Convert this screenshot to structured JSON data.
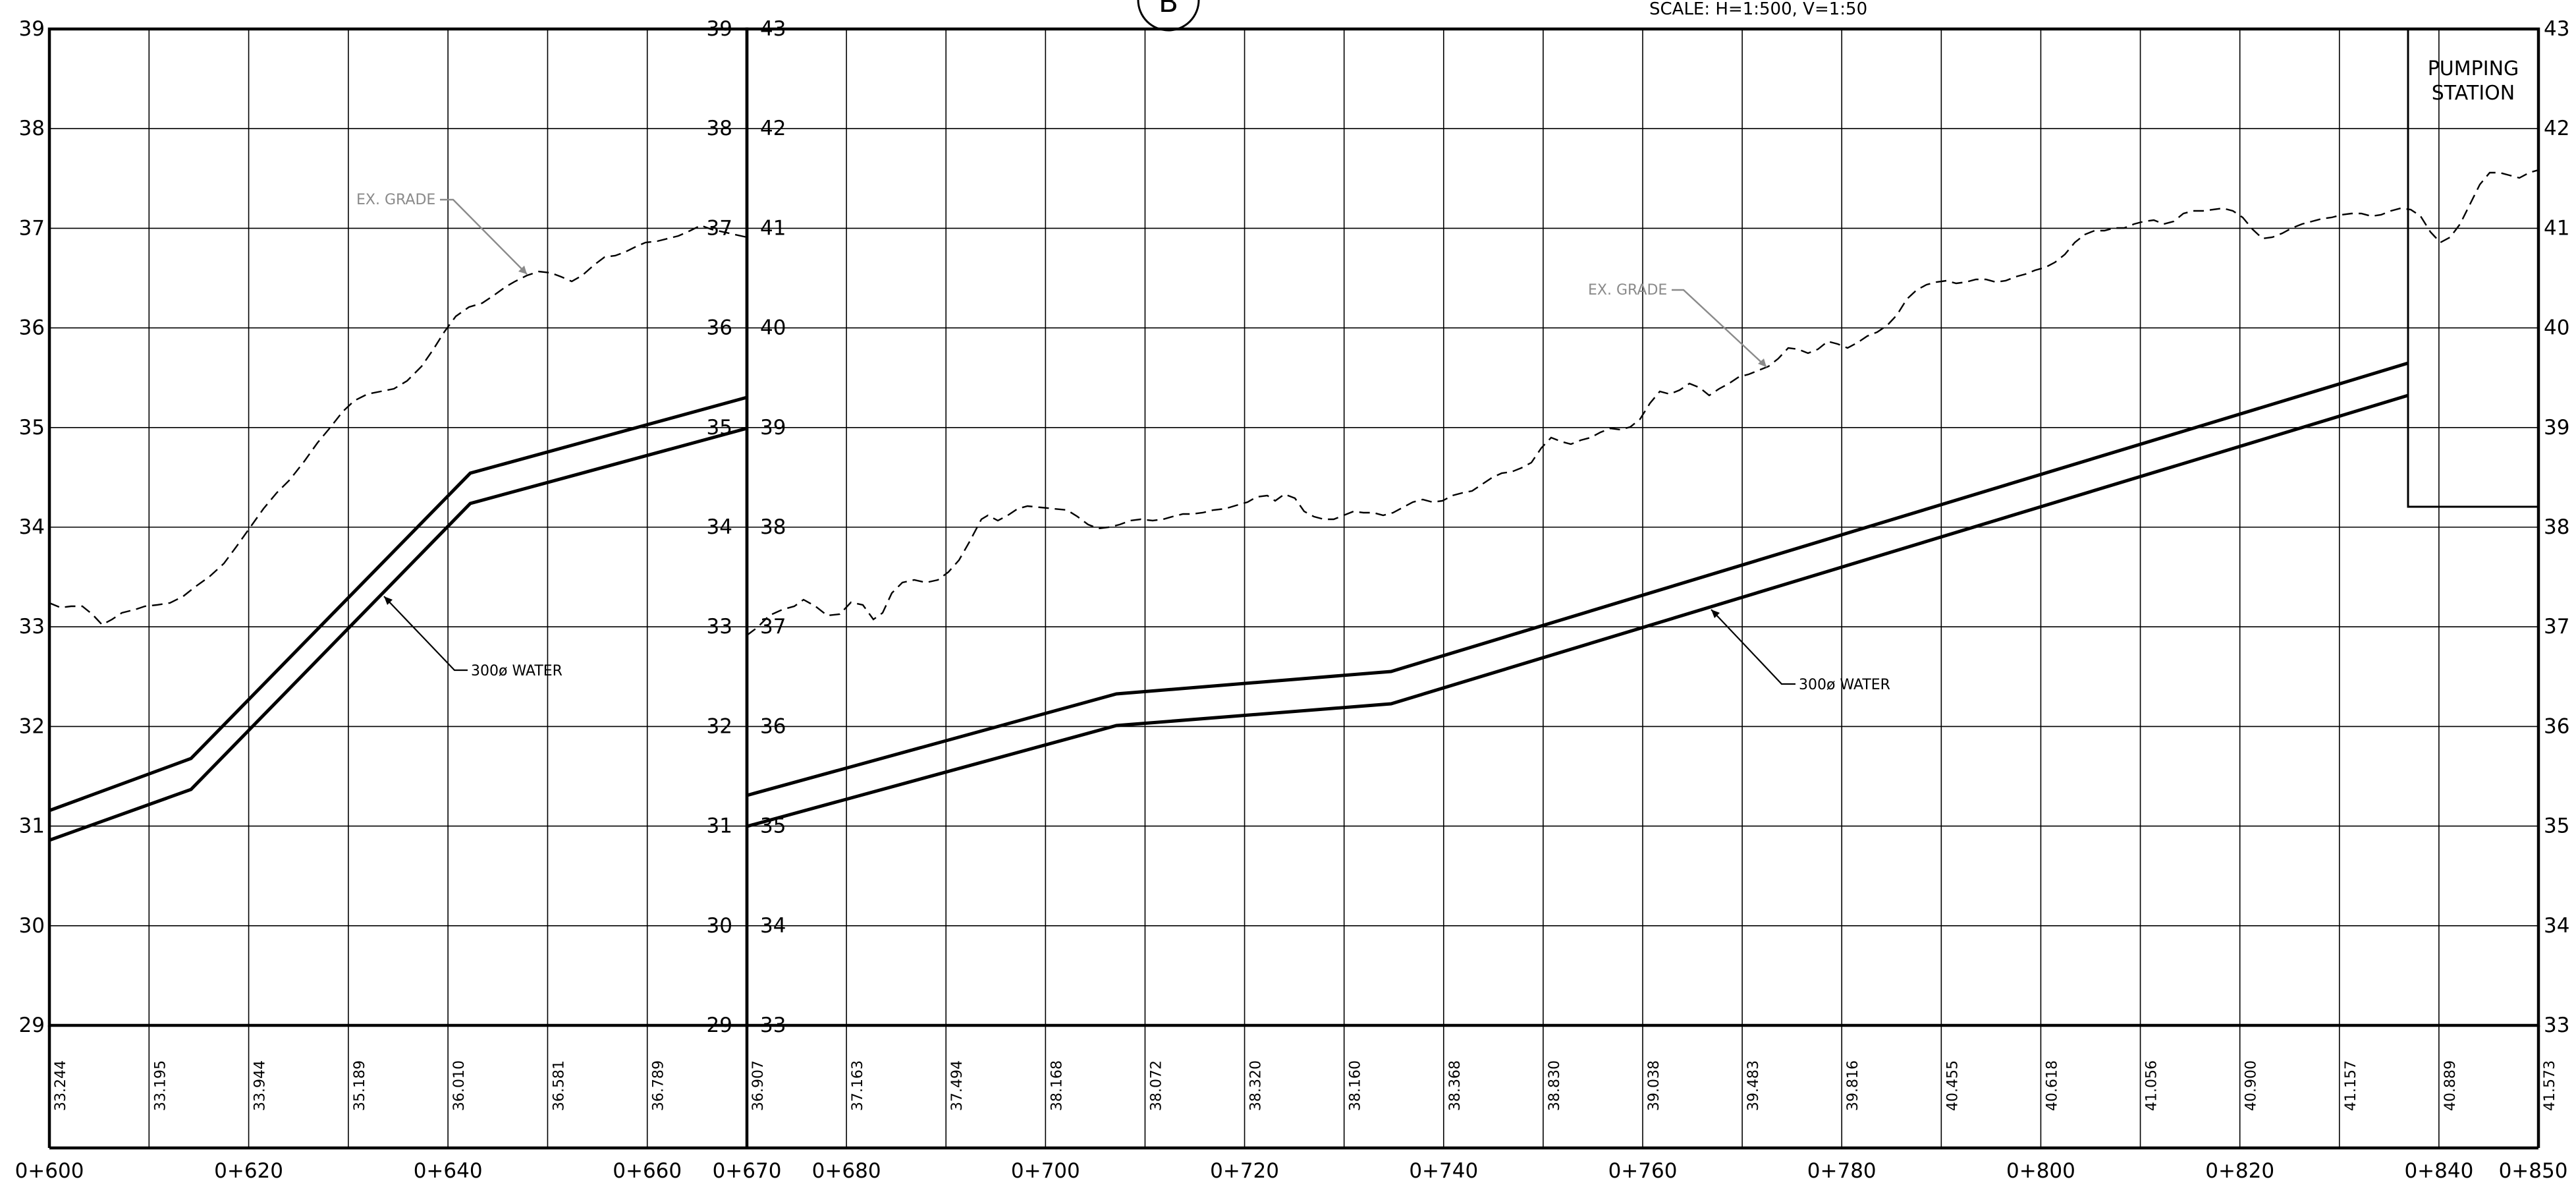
{
  "header": {
    "section_marker": "B",
    "scale": "SCALE: H=1:500, V=1:50"
  },
  "panels": [
    {
      "id": "left",
      "left_axis_ticks": [
        "39",
        "38",
        "37",
        "36",
        "35",
        "34",
        "33",
        "32",
        "31",
        "30",
        "29"
      ],
      "right_axis_ticks": [
        "39",
        "38",
        "37",
        "36",
        "35",
        "34",
        "33",
        "32",
        "31",
        "30",
        "29"
      ],
      "stations": [
        "0+600",
        "0+620",
        "0+640",
        "0+660",
        "0+670"
      ],
      "ground_elevations": [
        "33.244",
        "33.195",
        "33.944",
        "35.189",
        "36.010",
        "36.581",
        "36.789",
        "36.907"
      ],
      "labels": {
        "grade": "EX. GRADE",
        "pipe": "300ø WATER"
      }
    },
    {
      "id": "right",
      "left_axis_ticks": [
        "43",
        "42",
        "41",
        "40",
        "39",
        "38",
        "37",
        "36",
        "35",
        "34",
        "33"
      ],
      "right_axis_ticks": [
        "43",
        "42",
        "41",
        "40",
        "39",
        "38",
        "37",
        "36",
        "35",
        "34",
        "33"
      ],
      "stations": [
        "0+680",
        "0+700",
        "0+720",
        "0+740",
        "0+760",
        "0+780",
        "0+800",
        "0+820",
        "0+840",
        "0+850"
      ],
      "ground_elevations": [
        "37.163",
        "37.494",
        "38.168",
        "38.072",
        "38.320",
        "38.160",
        "38.368",
        "38.830",
        "39.038",
        "39.483",
        "39.816",
        "40.455",
        "40.618",
        "41.056",
        "40.900",
        "41.157",
        "40.889",
        "41.573"
      ],
      "labels": {
        "grade": "EX. GRADE",
        "pipe": "300ø WATER",
        "structure": [
          "PUMPING",
          "STATION"
        ]
      }
    }
  ]
}
